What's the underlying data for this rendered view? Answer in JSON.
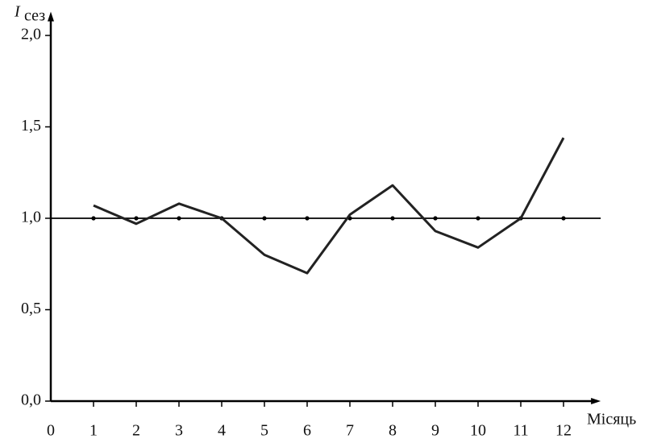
{
  "chart_data": {
    "type": "line",
    "ylabel": {
      "main": "I",
      "sub": "сез"
    },
    "xlabel": "Місяць",
    "x": [
      1,
      2,
      3,
      4,
      5,
      6,
      7,
      8,
      9,
      10,
      11,
      12
    ],
    "series": [
      {
        "color": "#222222",
        "values": [
          1.07,
          0.97,
          1.08,
          1.0,
          0.8,
          0.7,
          1.02,
          1.18,
          0.93,
          0.84,
          1.0,
          1.44
        ]
      }
    ],
    "reference": 1,
    "xlim": [
      0,
      12.87
    ],
    "ylim": [
      0,
      2.13
    ],
    "xticks": [
      0,
      1,
      2,
      3,
      4,
      5,
      6,
      7,
      8,
      9,
      10,
      11,
      12
    ],
    "yticks": [
      {
        "value": 0,
        "label": "0,0"
      },
      {
        "value": 0.5,
        "label": "0,5"
      },
      {
        "value": 1,
        "label": "1,0"
      },
      {
        "value": 1.5,
        "label": "1,5"
      },
      {
        "value": 2,
        "label": "2,0"
      }
    ]
  }
}
